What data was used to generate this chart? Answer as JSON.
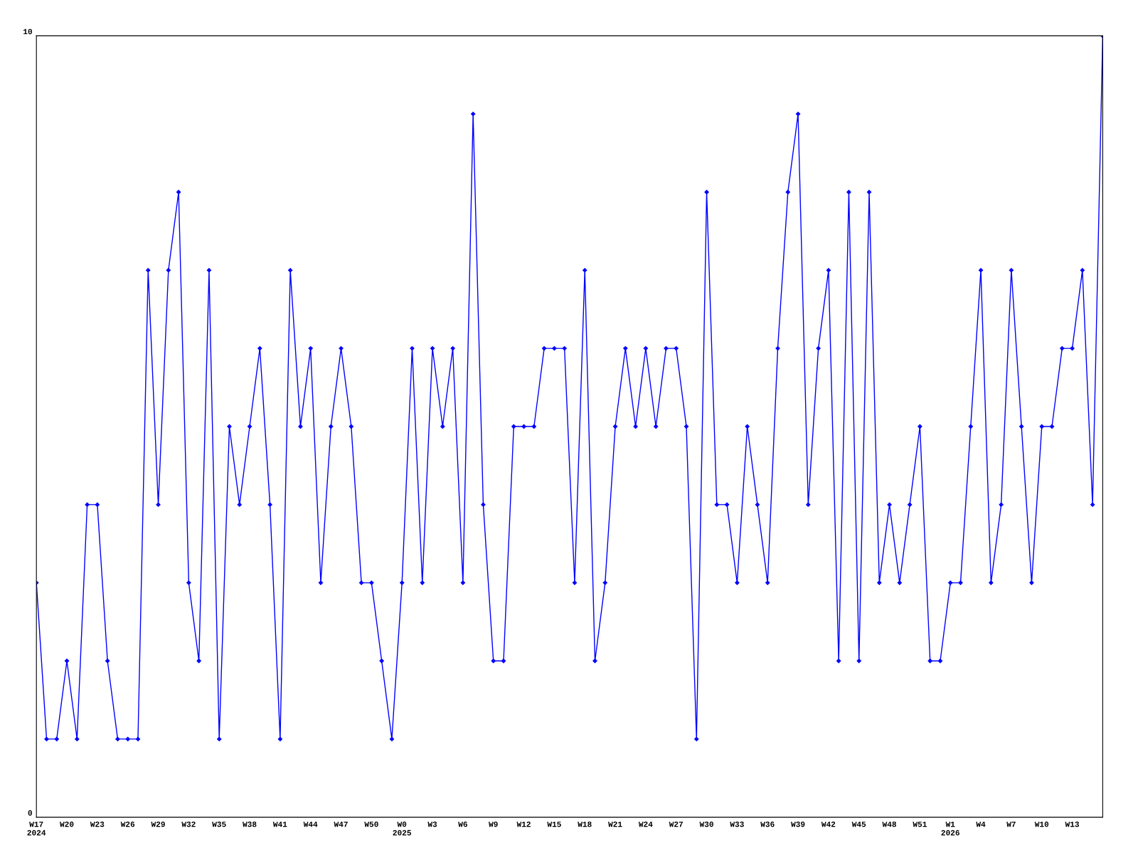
{
  "chart_data": {
    "type": "line",
    "categories": [
      "W17\n2024",
      null,
      null,
      "W20",
      null,
      null,
      "W23",
      null,
      null,
      "W26",
      null,
      null,
      "W29",
      null,
      null,
      "W32",
      null,
      null,
      "W35",
      null,
      null,
      "W38",
      null,
      null,
      "W41",
      null,
      null,
      "W44",
      null,
      null,
      "W47",
      null,
      null,
      "W50",
      null,
      null,
      "W0\n2025",
      null,
      null,
      "W3",
      null,
      null,
      "W6",
      null,
      null,
      "W9",
      null,
      null,
      "W12",
      null,
      null,
      "W15",
      null,
      null,
      "W18",
      null,
      null,
      "W21",
      null,
      null,
      "W24",
      null,
      null,
      "W27",
      null,
      null,
      "W30",
      null,
      null,
      "W33",
      null,
      null,
      "W36",
      null,
      null,
      "W39",
      null,
      null,
      "W42",
      null,
      null,
      "W45",
      null,
      null,
      "W48",
      null,
      null,
      "W51",
      null,
      null,
      "W1\n2026",
      null,
      null,
      "W4",
      null,
      null,
      "W7",
      null,
      null,
      "W10",
      null,
      null,
      "W13",
      null,
      null,
      null
    ],
    "series": [
      {
        "color": "#0000ff",
        "values": [
          3,
          1,
          1,
          2,
          1,
          4,
          4,
          2,
          1,
          1,
          1,
          7,
          4,
          7,
          8,
          3,
          2,
          7,
          1,
          5,
          4,
          5,
          6,
          4,
          1,
          7,
          5,
          6,
          3,
          5,
          6,
          5,
          3,
          3,
          2,
          1,
          3,
          6,
          3,
          6,
          5,
          6,
          3,
          9,
          4,
          2,
          2,
          5,
          5,
          5,
          6,
          6,
          6,
          3,
          7,
          2,
          3,
          5,
          6,
          5,
          6,
          5,
          6,
          6,
          5,
          1,
          8,
          4,
          4,
          3,
          5,
          4,
          3,
          6,
          8,
          9,
          4,
          6,
          7,
          2,
          8,
          2,
          8,
          3,
          4,
          3,
          4,
          5,
          2,
          2,
          3,
          3,
          5,
          7,
          3,
          4,
          7,
          5,
          3,
          5,
          5,
          6,
          6,
          7,
          4,
          10
        ]
      }
    ],
    "ylim": [
      0,
      10
    ],
    "yticks": [
      0,
      10
    ],
    "grid": false,
    "legend": false,
    "marker": "diamond",
    "line_style": "solid"
  }
}
